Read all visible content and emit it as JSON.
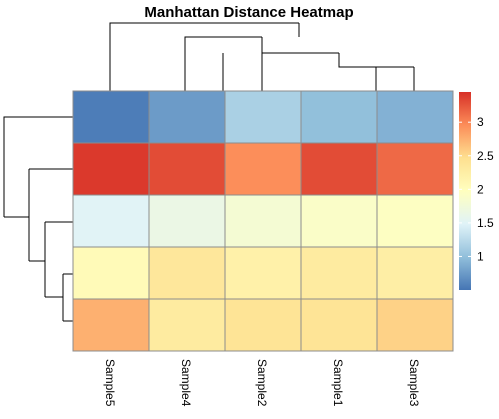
{
  "chart_data": {
    "type": "heatmap",
    "title": "Manhattan Distance Heatmap",
    "columns": [
      "Sample5",
      "Sample4",
      "Sample2",
      "Sample1",
      "Sample3"
    ],
    "values": [
      [
        0.55,
        0.75,
        1.15,
        1.0,
        0.9
      ],
      [
        3.4,
        3.3,
        2.95,
        3.3,
        3.15
      ],
      [
        1.5,
        1.65,
        1.8,
        1.9,
        1.95
      ],
      [
        2.05,
        2.35,
        2.2,
        2.3,
        2.25
      ],
      [
        2.75,
        2.3,
        2.4,
        2.4,
        2.55
      ]
    ],
    "color_scale": {
      "min": 0.5,
      "max": 3.45,
      "stops": [
        "#4575b4",
        "#91bfdb",
        "#e0f3f8",
        "#ffffbf",
        "#fee090",
        "#fc8d59",
        "#d73027"
      ],
      "ticks": [
        1,
        1.5,
        2,
        2.5,
        3
      ],
      "tick_labels": [
        "1",
        "1.5",
        "2",
        "2.5",
        "3"
      ]
    },
    "legend_position": "right",
    "col_dendrogram": true,
    "row_dendrogram": true
  }
}
